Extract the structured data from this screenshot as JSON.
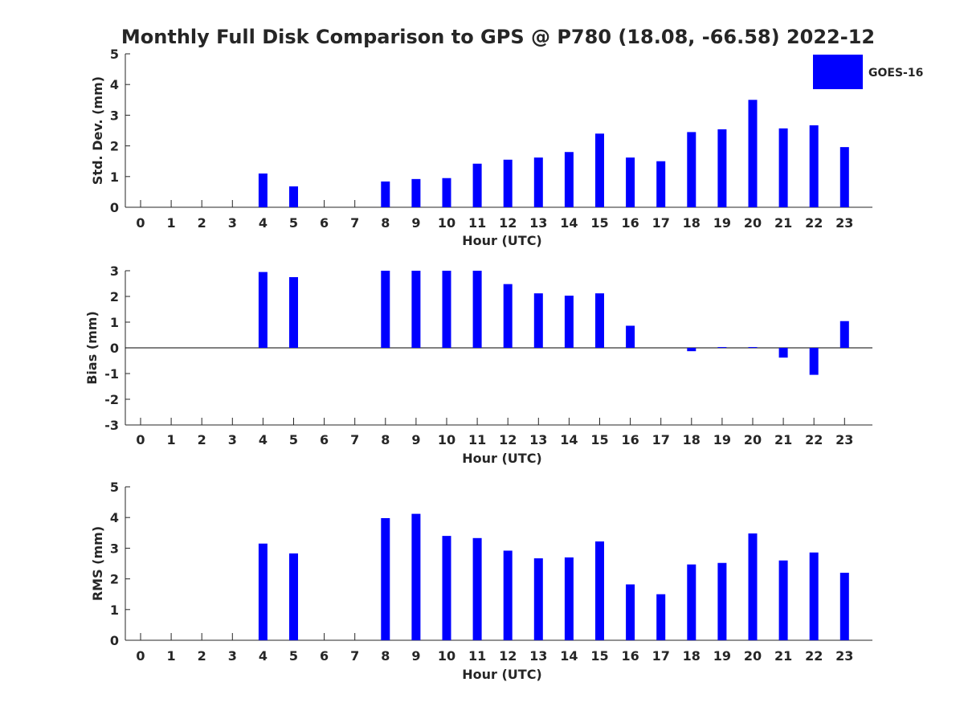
{
  "colors": {
    "bar": "#0000ff",
    "axis": "#262626",
    "background": "#ffffff"
  },
  "chart_data": {
    "title": "Monthly Full Disk Comparison to GPS @ P780 (18.08, -66.58) 2022-12",
    "legend": {
      "entries": [
        "GOES-16"
      ],
      "placement": "top-right"
    },
    "panels": [
      {
        "type": "bar",
        "xlabel": "Hour (UTC)",
        "ylabel": "Std. Dev. (mm)",
        "ylim": [
          0,
          5
        ],
        "yticks": [
          "0",
          "1",
          "2",
          "3",
          "4",
          "5"
        ],
        "categories": [
          "0",
          "1",
          "2",
          "3",
          "4",
          "5",
          "6",
          "7",
          "8",
          "9",
          "10",
          "11",
          "12",
          "13",
          "14",
          "15",
          "16",
          "17",
          "18",
          "19",
          "20",
          "21",
          "22",
          "23"
        ],
        "series": [
          {
            "name": "GOES-16",
            "values": [
              null,
              null,
              null,
              null,
              1.1,
              0.68,
              null,
              null,
              0.84,
              0.92,
              0.95,
              1.42,
              1.55,
              1.62,
              1.8,
              2.4,
              1.62,
              1.5,
              2.45,
              2.54,
              3.5,
              2.57,
              2.67,
              1.96
            ]
          }
        ]
      },
      {
        "type": "bar",
        "xlabel": "Hour (UTC)",
        "ylabel": "Bias (mm)",
        "ylim": [
          -3,
          3
        ],
        "yticks": [
          "-3",
          "-2",
          "-1",
          "0",
          "1",
          "2",
          "3"
        ],
        "zero_line": true,
        "categories": [
          "0",
          "1",
          "2",
          "3",
          "4",
          "5",
          "6",
          "7",
          "8",
          "9",
          "10",
          "11",
          "12",
          "13",
          "14",
          "15",
          "16",
          "17",
          "18",
          "19",
          "20",
          "21",
          "22",
          "23"
        ],
        "series": [
          {
            "name": "GOES-16",
            "values": [
              null,
              null,
              null,
              null,
              2.95,
              2.75,
              null,
              null,
              3.0,
              3.0,
              3.0,
              3.0,
              2.48,
              2.12,
              2.03,
              2.12,
              0.86,
              null,
              -0.13,
              0.03,
              0.03,
              -0.38,
              -1.05,
              1.04
            ]
          }
        ]
      },
      {
        "type": "bar",
        "xlabel": "Hour (UTC)",
        "ylabel": "RMS (mm)",
        "ylim": [
          0,
          5
        ],
        "yticks": [
          "0",
          "1",
          "2",
          "3",
          "4",
          "5"
        ],
        "categories": [
          "0",
          "1",
          "2",
          "3",
          "4",
          "5",
          "6",
          "7",
          "8",
          "9",
          "10",
          "11",
          "12",
          "13",
          "14",
          "15",
          "16",
          "17",
          "18",
          "19",
          "20",
          "21",
          "22",
          "23"
        ],
        "series": [
          {
            "name": "GOES-16",
            "values": [
              null,
              null,
              null,
              null,
              3.15,
              2.83,
              null,
              null,
              3.98,
              4.12,
              3.4,
              3.33,
              2.92,
              2.67,
              2.7,
              3.22,
              1.82,
              1.5,
              2.47,
              2.52,
              3.48,
              2.6,
              2.86,
              2.2
            ]
          }
        ]
      }
    ]
  }
}
